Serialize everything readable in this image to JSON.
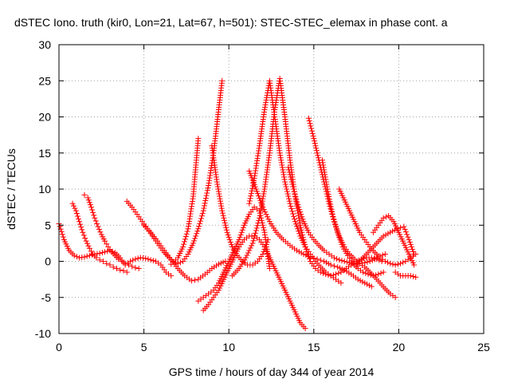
{
  "chart_data": {
    "type": "scatter",
    "title": "dSTEC Iono. truth (kir0, Lon=21, Lat=67, h=501): STEC-STEC_elemax in phase cont. a",
    "xlabel": "GPS time / hours of day 344 of year 2014",
    "ylabel": "dSTEC  / TECUs",
    "xlim": [
      0,
      25
    ],
    "ylim": [
      -10,
      30
    ],
    "x_ticks": [
      "0",
      "5",
      "10",
      "15",
      "20",
      "25"
    ],
    "y_ticks": [
      "-10",
      "-5",
      "0",
      "5",
      "10",
      "15",
      "20",
      "25",
      "30"
    ],
    "grid": true,
    "marker": "+",
    "series_color": "#ff0000",
    "series": [
      {
        "x": [
          0.0,
          0.3,
          0.6,
          0.9,
          1.2,
          1.5,
          1.8,
          2.1,
          2.4,
          2.7,
          3.0,
          3.3,
          3.6,
          3.9,
          4.2,
          4.5,
          4.8,
          5.1,
          5.4,
          5.7,
          6.0,
          6.3,
          6.6
        ],
        "y": [
          5.2,
          3.0,
          1.5,
          0.8,
          0.5,
          0.6,
          0.8,
          1.0,
          1.1,
          1.3,
          1.5,
          1.2,
          0.5,
          -0.5,
          0.0,
          0.3,
          0.5,
          0.4,
          0.2,
          0.0,
          -0.5,
          -1.5,
          -2.0
        ]
      },
      {
        "x": [
          0.8,
          1.0,
          1.2,
          1.4,
          1.6,
          1.8,
          2.0,
          2.2,
          2.4,
          2.6,
          2.8,
          3.0,
          3.2,
          3.4,
          3.6,
          3.8,
          4.0
        ],
        "y": [
          8.0,
          7.0,
          5.5,
          4.0,
          2.8,
          1.8,
          1.0,
          0.5,
          0.2,
          0.0,
          -0.3,
          -0.5,
          -0.8,
          -1.0,
          -1.2,
          -1.3,
          -1.5
        ]
      },
      {
        "x": [
          1.5,
          1.7,
          1.9,
          2.1,
          2.3,
          2.5,
          2.7,
          2.9,
          3.1,
          3.3,
          3.5,
          3.7,
          3.9,
          4.1,
          4.3,
          4.5,
          4.7
        ],
        "y": [
          9.2,
          8.8,
          7.5,
          6.0,
          4.8,
          3.7,
          2.8,
          2.0,
          1.3,
          0.8,
          0.3,
          0.0,
          -0.3,
          -0.5,
          -0.7,
          -0.9,
          -1.0
        ]
      },
      {
        "x": [
          4.0,
          4.3,
          4.6,
          4.9,
          5.2,
          5.5,
          5.8,
          6.1,
          6.4,
          6.7,
          7.0,
          7.3,
          7.6,
          7.9,
          8.2,
          8.5,
          8.8,
          9.1,
          9.4,
          9.6
        ],
        "y": [
          8.3,
          7.5,
          6.5,
          5.5,
          4.5,
          3.5,
          2.5,
          1.5,
          0.7,
          0.0,
          -0.3,
          0.0,
          1.0,
          2.5,
          4.5,
          7.0,
          10.5,
          15.0,
          21.0,
          25.0
        ]
      },
      {
        "x": [
          5.0,
          5.4,
          5.8,
          6.2,
          6.6,
          7.0,
          7.4,
          7.8,
          8.2,
          8.6,
          9.0,
          9.4,
          9.8
        ],
        "y": [
          5.0,
          4.0,
          2.8,
          1.5,
          0.2,
          -1.0,
          -2.0,
          -2.7,
          -2.5,
          -1.8,
          -1.0,
          -0.4,
          0.0
        ]
      },
      {
        "x": [
          6.6,
          7.0,
          7.3,
          7.6,
          7.9,
          8.2
        ],
        "y": [
          -0.4,
          0.5,
          2.0,
          4.5,
          9.0,
          17.0
        ]
      },
      {
        "x": [
          8.2,
          8.5,
          8.8,
          9.1,
          9.4,
          9.7,
          10.0,
          10.3,
          10.6,
          10.9,
          11.2,
          11.5,
          11.8,
          12.1,
          12.4
        ],
        "y": [
          -5.5,
          -5.0,
          -4.5,
          -4.0,
          -3.0,
          -1.5,
          0.0,
          1.5,
          3.0,
          5.0,
          6.5,
          7.5,
          7.0,
          4.0,
          -1.0
        ]
      },
      {
        "x": [
          8.5,
          8.8,
          9.1,
          9.4,
          9.7,
          10.0,
          10.3,
          10.6,
          10.9,
          11.2,
          11.5,
          11.8,
          12.1,
          12.4,
          12.7,
          13.0,
          13.3,
          13.6,
          13.9,
          14.2,
          14.5
        ],
        "y": [
          -6.8,
          -6.0,
          -5.0,
          -4.0,
          -2.5,
          -1.0,
          0.5,
          2.0,
          3.0,
          3.5,
          3.5,
          3.0,
          2.0,
          0.5,
          -1.0,
          -2.5,
          -4.0,
          -5.5,
          -7.0,
          -8.5,
          -9.3
        ]
      },
      {
        "x": [
          9.0,
          9.3,
          9.6,
          9.9,
          10.2,
          10.5,
          10.8,
          11.1,
          11.4,
          11.7,
          12.0,
          12.3
        ],
        "y": [
          16.0,
          11.0,
          7.0,
          4.0,
          2.0,
          0.8,
          0.0,
          -0.5,
          -0.5,
          0.0,
          1.0,
          3.0
        ]
      },
      {
        "x": [
          10.2,
          10.6,
          11.0,
          11.4,
          11.8,
          12.1,
          12.4,
          12.7,
          13.0,
          13.3,
          13.6,
          13.9,
          14.2,
          14.5,
          14.8,
          15.1,
          15.4,
          15.7,
          16.0,
          16.3,
          16.6,
          16.9,
          17.2,
          17.5,
          17.8,
          18.1,
          18.4,
          18.7,
          19.0
        ],
        "y": [
          -2.0,
          -1.0,
          0.5,
          2.5,
          6.0,
          10.0,
          15.0,
          21.0,
          25.3,
          20.0,
          14.0,
          9.0,
          5.0,
          2.0,
          0.0,
          -1.0,
          -1.5,
          -1.8,
          -2.0,
          -1.8,
          -1.5,
          -1.0,
          -0.5,
          0.0,
          0.3,
          0.5,
          0.5,
          0.3,
          0.0
        ]
      },
      {
        "x": [
          11.2,
          11.5,
          11.8,
          12.1,
          12.4,
          12.7,
          13.0,
          13.3,
          13.6,
          13.9,
          14.2,
          14.5,
          14.8,
          15.1,
          15.4,
          15.7,
          16.0,
          16.3,
          16.6
        ],
        "y": [
          8.0,
          11.5,
          16.0,
          21.0,
          25.0,
          20.0,
          15.0,
          11.0,
          8.0,
          5.5,
          3.5,
          2.0,
          1.0,
          0.0,
          -0.8,
          -1.5,
          -2.0,
          -2.5,
          -3.0
        ]
      },
      {
        "x": [
          11.2,
          11.6,
          12.0,
          12.4,
          12.8,
          13.2,
          13.6,
          14.0,
          14.4,
          14.8,
          15.2,
          15.6,
          16.0,
          16.4,
          16.8,
          17.2,
          17.6,
          18.0,
          18.4
        ],
        "y": [
          12.5,
          10.0,
          7.5,
          5.5,
          4.0,
          3.0,
          2.2,
          1.5,
          1.0,
          0.6,
          0.3,
          0.0,
          -0.5,
          -0.8,
          -1.2,
          -1.8,
          -2.5,
          -3.0,
          -3.5
        ]
      },
      {
        "x": [
          13.5,
          13.8,
          14.1,
          14.4,
          14.7,
          15.0,
          15.3,
          15.6,
          15.9,
          16.2,
          16.5,
          16.8,
          17.1,
          17.4,
          17.7,
          18.0,
          18.3,
          18.6,
          18.9,
          19.2
        ],
        "y": [
          13.0,
          10.0,
          7.5,
          5.5,
          4.0,
          3.0,
          2.2,
          1.5,
          1.0,
          0.5,
          0.2,
          0.0,
          -0.2,
          -0.3,
          -0.3,
          -0.2,
          0.0,
          0.3,
          0.7,
          1.0
        ]
      },
      {
        "x": [
          14.7,
          15.0,
          15.3,
          15.6,
          15.9,
          16.2,
          16.5,
          16.8,
          17.1,
          17.4,
          17.7,
          18.0,
          18.3,
          18.6,
          18.9,
          19.2,
          19.5,
          19.8
        ],
        "y": [
          19.8,
          17.0,
          14.0,
          11.0,
          8.0,
          5.5,
          3.5,
          2.0,
          1.0,
          0.3,
          -0.3,
          -0.8,
          -1.5,
          -2.2,
          -3.0,
          -3.8,
          -4.5,
          -5.0
        ]
      },
      {
        "x": [
          15.5,
          15.8,
          16.1,
          16.4,
          16.7,
          17.0,
          17.3,
          17.6,
          17.9,
          18.2,
          18.5,
          18.8,
          19.1
        ],
        "y": [
          14.0,
          10.0,
          6.5,
          4.0,
          2.0,
          0.8,
          -0.3,
          -1.0,
          -1.5,
          -1.8,
          -2.0,
          -1.8,
          -1.5
        ]
      },
      {
        "x": [
          16.5,
          16.8,
          17.1,
          17.4,
          17.7,
          18.0,
          18.3,
          18.6,
          18.9,
          19.2,
          19.5,
          19.8,
          20.1,
          20.4,
          20.7,
          21.0
        ],
        "y": [
          10.0,
          8.5,
          7.0,
          5.5,
          4.0,
          3.0,
          2.0,
          1.2,
          0.5,
          0.0,
          -0.3,
          -0.5,
          -0.3,
          0.0,
          0.5,
          1.0
        ]
      },
      {
        "x": [
          18.5,
          18.8,
          19.1,
          19.4,
          19.7,
          20.0,
          20.3,
          20.6,
          20.9
        ],
        "y": [
          4.0,
          5.0,
          6.0,
          6.3,
          5.5,
          4.0,
          2.5,
          1.0,
          -0.5
        ]
      },
      {
        "x": [
          17.5,
          17.9,
          18.3,
          18.7,
          19.1,
          19.5,
          19.9,
          20.3,
          20.6,
          20.9
        ],
        "y": [
          -0.5,
          0.5,
          1.5,
          2.5,
          3.5,
          4.0,
          4.5,
          4.8,
          3.0,
          1.0
        ]
      },
      {
        "x": [
          19.8,
          20.1,
          20.4,
          20.7,
          21.0
        ],
        "y": [
          -1.5,
          -2.0,
          -2.0,
          -2.0,
          -2.2
        ]
      }
    ]
  }
}
